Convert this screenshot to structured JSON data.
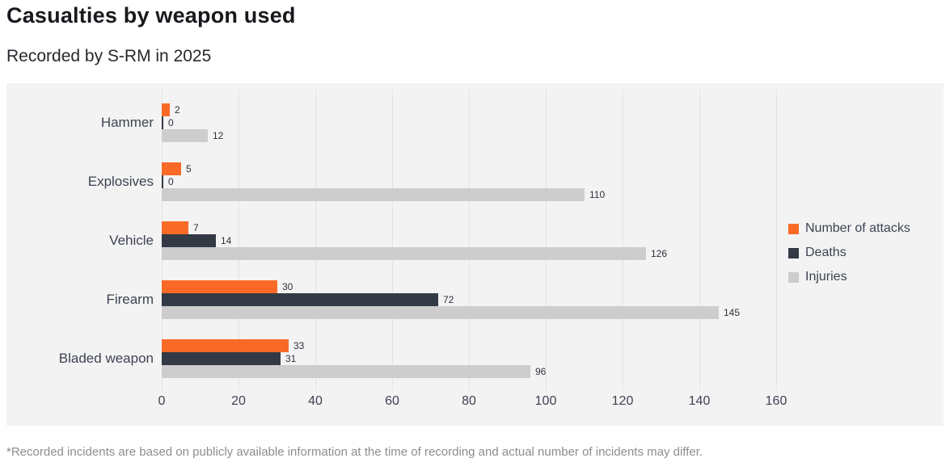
{
  "header": {
    "title": "Casualties by weapon used",
    "subtitle": "Recorded by S-RM in 2025"
  },
  "footnote": "*Recorded incidents are based on publicly available information at the time of recording and actual number of incidents may differ.",
  "colors": {
    "attacks": "#fa6a26",
    "deaths": "#343a45",
    "injuries": "#cdcdce",
    "panel_background": "#f3f3f4",
    "gridline": "#e3e3e5",
    "axis_text": "#3d4350",
    "footnote_text": "#8d8d8d"
  },
  "chart_data": {
    "type": "bar",
    "orientation": "horizontal",
    "title": "Casualties by weapon used",
    "subtitle": "Recorded by S-RM in 2025",
    "categories": [
      "Hammer",
      "Explosives",
      "Vehicle",
      "Firearm",
      "Bladed weapon"
    ],
    "series": [
      {
        "name": "Number of attacks",
        "color": "#fa6a26",
        "values": [
          2,
          5,
          7,
          30,
          33
        ]
      },
      {
        "name": "Deaths",
        "color": "#343a45",
        "values": [
          0,
          0,
          14,
          72,
          31
        ]
      },
      {
        "name": "Injuries",
        "color": "#cdcdce",
        "values": [
          12,
          110,
          126,
          145,
          96
        ]
      }
    ],
    "x_ticks": [
      0,
      20,
      40,
      60,
      80,
      100,
      120,
      140,
      160
    ],
    "xlim": [
      0,
      160
    ],
    "xlabel": "",
    "ylabel": "",
    "grid": true,
    "legend_position": "right",
    "value_labels": true
  }
}
